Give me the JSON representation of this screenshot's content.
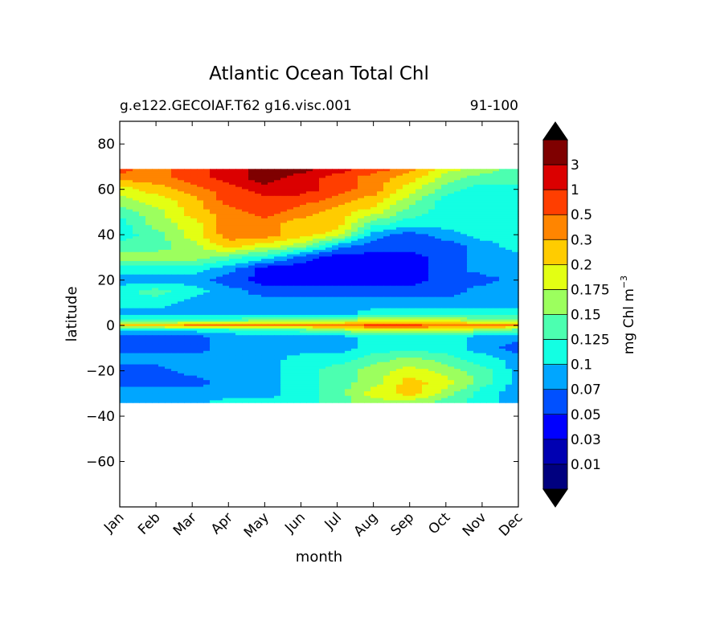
{
  "chart_data": {
    "type": "heatmap",
    "title": "Atlantic Ocean Total Chl",
    "subtitle_left": "g.e122.GECOIAF.T62 g16.visc.001",
    "subtitle_right": "91-100",
    "xlabel": "month",
    "ylabel": "latitude",
    "x_ticks": [
      "Jan",
      "Feb",
      "Mar",
      "Apr",
      "May",
      "Jun",
      "Jul",
      "Aug",
      "Sep",
      "Oct",
      "Nov",
      "Dec"
    ],
    "y_ticks": [
      80,
      60,
      40,
      20,
      0,
      -20,
      -40,
      -60
    ],
    "y_tick_labels": [
      "80",
      "60",
      "40",
      "20",
      "0",
      "−20",
      "−40",
      "−60"
    ],
    "ylim": [
      -80,
      90
    ],
    "data_lat_range": [
      -34,
      69
    ],
    "colorbar": {
      "label": "mg Chl m",
      "label_exponent": "−3",
      "levels": [
        "0.01",
        "0.03",
        "0.05",
        "0.07",
        "0.1",
        "0.125",
        "0.15",
        "0.175",
        "0.2",
        "0.3",
        "0.5",
        "1",
        "3"
      ],
      "colors": [
        "#00007f",
        "#0000b2",
        "#0000ff",
        "#0050ff",
        "#00a6ff",
        "#13ffe3",
        "#4cffb0",
        "#9cff5e",
        "#e3ff13",
        "#ffcc00",
        "#ff8500",
        "#ff3e00",
        "#db0000",
        "#7f0000"
      ],
      "extend": "both"
    },
    "contour_levels": {
      "description_lat": [
        69,
        65,
        60,
        55,
        50,
        45,
        40,
        35,
        30,
        25,
        20,
        15,
        10,
        5,
        2,
        0,
        -2,
        -5,
        -10,
        -15,
        -20,
        -25,
        -30,
        -34
      ],
      "rows": [
        [
          11,
          10,
          11,
          12,
          13,
          13,
          12,
          11,
          10,
          8,
          7,
          6
        ],
        [
          10,
          10,
          11,
          12,
          13,
          12,
          11,
          10,
          9,
          7,
          6,
          6
        ],
        [
          8,
          9,
          10,
          11,
          12,
          12,
          11,
          10,
          8,
          6,
          5,
          5
        ],
        [
          7,
          8,
          9,
          11,
          11,
          11,
          10,
          9,
          7,
          5,
          5,
          5
        ],
        [
          6,
          7,
          9,
          10,
          11,
          10,
          9,
          8,
          6,
          5,
          5,
          5
        ],
        [
          5,
          7,
          8,
          10,
          10,
          9,
          9,
          6,
          5,
          5,
          5,
          5
        ],
        [
          5,
          6,
          8,
          10,
          10,
          9,
          8,
          4,
          3,
          4,
          5,
          5
        ],
        [
          6,
          6,
          7,
          9,
          8,
          7,
          4,
          3,
          3,
          3,
          4,
          5
        ],
        [
          7,
          7,
          7,
          6,
          5,
          3,
          2,
          2,
          2,
          3,
          4,
          4
        ],
        [
          5,
          5,
          5,
          4,
          2,
          2,
          2,
          2,
          2,
          3,
          4,
          4
        ],
        [
          4,
          4,
          4,
          3,
          2,
          2,
          2,
          2,
          2,
          3,
          3,
          4
        ],
        [
          5,
          6,
          5,
          4,
          3,
          3,
          3,
          3,
          3,
          3,
          4,
          4
        ],
        [
          5,
          5,
          4,
          4,
          4,
          4,
          4,
          4,
          4,
          4,
          4,
          4
        ],
        [
          4,
          4,
          4,
          4,
          4,
          4,
          4,
          5,
          5,
          5,
          5,
          5
        ],
        [
          6,
          6,
          6,
          6,
          7,
          7,
          7,
          8,
          8,
          8,
          7,
          7
        ],
        [
          9,
          9,
          10,
          10,
          10,
          10,
          10,
          11,
          11,
          10,
          10,
          10
        ],
        [
          5,
          5,
          5,
          5,
          6,
          6,
          7,
          8,
          8,
          8,
          7,
          6
        ],
        [
          3,
          3,
          3,
          4,
          4,
          4,
          4,
          5,
          5,
          5,
          4,
          4
        ],
        [
          3,
          3,
          3,
          4,
          4,
          4,
          4,
          5,
          5,
          5,
          4,
          3
        ],
        [
          4,
          4,
          4,
          4,
          4,
          5,
          5,
          6,
          7,
          6,
          5,
          4
        ],
        [
          3,
          3,
          4,
          4,
          4,
          5,
          6,
          7,
          8,
          7,
          6,
          4
        ],
        [
          3,
          3,
          3,
          4,
          4,
          5,
          6,
          7,
          9,
          8,
          6,
          4
        ],
        [
          4,
          4,
          4,
          4,
          4,
          5,
          6,
          8,
          9,
          7,
          5,
          4
        ],
        [
          4,
          4,
          4,
          5,
          5,
          5,
          6,
          7,
          7,
          6,
          5,
          4
        ]
      ]
    }
  }
}
